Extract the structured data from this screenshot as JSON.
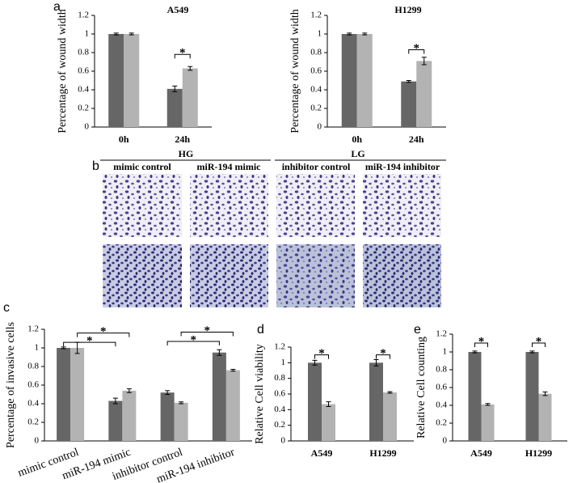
{
  "panel_labels": [
    "a",
    "b",
    "c",
    "d",
    "e"
  ],
  "image_panel": {
    "groups": [
      "HG",
      "LG"
    ],
    "columns": [
      "mimic control",
      "miR-194 mimic",
      "inhibitor control",
      "miR-194 inhibitor"
    ]
  },
  "chart_data": [
    {
      "type": "bar",
      "title": "A549",
      "y_label": "Percentage of wound width",
      "categories": [
        "0h",
        "24h"
      ],
      "series": [
        {
          "color": "#666666",
          "values": [
            1,
            0.41
          ],
          "errors": [
            0.01,
            0.03
          ]
        },
        {
          "color": "#b3b3b3",
          "values": [
            1,
            0.63
          ],
          "errors": [
            0.01,
            0.02
          ]
        }
      ],
      "ylim": [
        0,
        1.2
      ],
      "yticks": [
        0,
        0.2,
        0.4,
        0.6,
        0.8,
        1,
        1.2
      ],
      "annotations": [
        "*"
      ]
    },
    {
      "type": "bar",
      "title": "H1299",
      "y_label": "Percentage of wound width",
      "categories": [
        "0h",
        "24h"
      ],
      "series": [
        {
          "color": "#666666",
          "values": [
            1,
            0.49
          ],
          "errors": [
            0.01,
            0.01
          ]
        },
        {
          "color": "#b3b3b3",
          "values": [
            1,
            0.71
          ],
          "errors": [
            0.01,
            0.04
          ]
        }
      ],
      "ylim": [
        0,
        1.2
      ],
      "yticks": [
        0,
        0.2,
        0.4,
        0.6,
        0.8,
        1,
        1.2
      ],
      "annotations": [
        "*"
      ]
    },
    {
      "type": "bar",
      "y_label": "Percentage of invasive cells",
      "categories": [
        "mimic control",
        "miR-194 mimic",
        "inhibitor control",
        "miR-194 inhibitor"
      ],
      "series": [
        {
          "color": "#666666",
          "values": [
            1,
            0.43,
            0.52,
            0.95
          ],
          "errors": [
            0.01,
            0.03,
            0.02,
            0.03
          ]
        },
        {
          "color": "#b3b3b3",
          "values": [
            1,
            0.54,
            0.41,
            0.76
          ],
          "errors": [
            0.06,
            0.02,
            0.01,
            0.01
          ]
        }
      ],
      "ylim": [
        0,
        1.2
      ],
      "yticks": [
        0,
        0.2,
        0.4,
        0.6,
        0.8,
        1,
        1.2
      ],
      "annotations": [
        "*",
        "*",
        "*",
        "*"
      ]
    },
    {
      "type": "bar",
      "y_label": "Relative Cell viability",
      "categories": [
        "A549",
        "H1299"
      ],
      "series": [
        {
          "color": "#666666",
          "values": [
            1,
            1
          ],
          "errors": [
            0.03,
            0.04
          ]
        },
        {
          "color": "#b3b3b3",
          "values": [
            0.47,
            0.62
          ],
          "errors": [
            0.03,
            0.01
          ]
        }
      ],
      "ylim": [
        0,
        1.2
      ],
      "yticks": [
        0,
        0.2,
        0.4,
        0.6,
        0.8,
        1,
        1.2
      ],
      "annotations": [
        "*",
        "*"
      ]
    },
    {
      "type": "bar",
      "y_label": "Relative Cell counting",
      "categories": [
        "A549",
        "H1299"
      ],
      "series": [
        {
          "color": "#666666",
          "values": [
            1,
            1
          ],
          "errors": [
            0.01,
            0.01
          ]
        },
        {
          "color": "#b3b3b3",
          "values": [
            0.41,
            0.53
          ],
          "errors": [
            0.01,
            0.02
          ]
        }
      ],
      "ylim": [
        0,
        1.2
      ],
      "yticks": [
        0,
        0.2,
        0.4,
        0.6,
        0.8,
        1,
        1.2
      ],
      "annotations": [
        "*",
        "*"
      ]
    }
  ]
}
